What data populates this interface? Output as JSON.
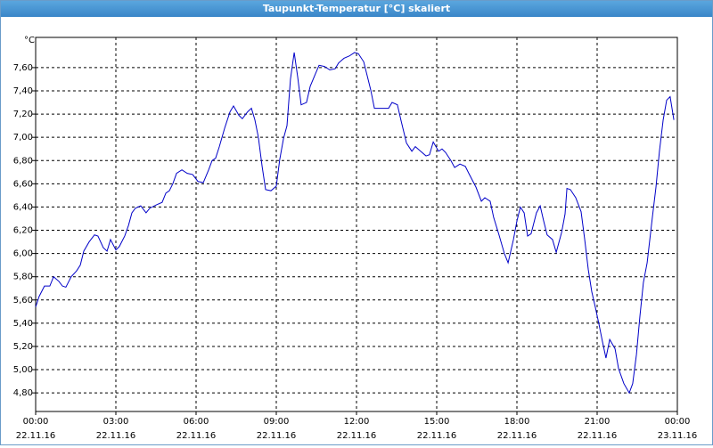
{
  "chart_data": {
    "type": "line",
    "title": "Taupunkt-Temperatur [°C] skaliert",
    "ylabel": "°C",
    "x": [
      0,
      0.13,
      0.33,
      0.53,
      0.67,
      0.87,
      1,
      1.13,
      1.33,
      1.53,
      1.67,
      1.8,
      2,
      2.2,
      2.33,
      2.53,
      2.67,
      2.8,
      3,
      3.13,
      3.33,
      3.47,
      3.6,
      3.73,
      3.93,
      4.13,
      4.27,
      4.53,
      4.73,
      4.87,
      5,
      5.13,
      5.27,
      5.47,
      5.67,
      5.87,
      6.07,
      6.27,
      6.47,
      6.6,
      6.73,
      6.87,
      7.07,
      7.27,
      7.4,
      7.6,
      7.73,
      7.93,
      8.07,
      8.2,
      8.33,
      8.47,
      8.6,
      8.8,
      9,
      9.13,
      9.27,
      9.4,
      9.53,
      9.67,
      9.8,
      9.93,
      10.13,
      10.27,
      10.47,
      10.6,
      10.8,
      11,
      11.2,
      11.33,
      11.53,
      11.73,
      11.93,
      12.07,
      12.27,
      12.4,
      12.53,
      12.67,
      12.87,
      13.07,
      13.2,
      13.33,
      13.53,
      13.67,
      13.87,
      14.07,
      14.2,
      14.4,
      14.6,
      14.73,
      14.87,
      15.07,
      15.2,
      15.33,
      15.53,
      15.67,
      15.87,
      16.07,
      16.2,
      16.47,
      16.67,
      16.8,
      17,
      17.13,
      17.33,
      17.53,
      17.67,
      17.87,
      18,
      18.13,
      18.27,
      18.4,
      18.53,
      18.73,
      18.87,
      19,
      19.13,
      19.33,
      19.47,
      19.67,
      19.8,
      19.87,
      20,
      20.2,
      20.4,
      20.53,
      20.67,
      20.8,
      20.93,
      21.07,
      21.2,
      21.33,
      21.47,
      21.67,
      21.8,
      22,
      22.2,
      22.33,
      22.47,
      22.6,
      22.73,
      22.87,
      23.07,
      23.2,
      23.33,
      23.47,
      23.6,
      23.73,
      23.87
    ],
    "series": [
      {
        "color": "#0000c8",
        "values": [
          5.54,
          5.63,
          5.72,
          5.72,
          5.8,
          5.76,
          5.72,
          5.71,
          5.8,
          5.85,
          5.9,
          6.02,
          6.1,
          6.16,
          6.15,
          6.05,
          6.02,
          6.12,
          6.03,
          6.06,
          6.15,
          6.24,
          6.35,
          6.39,
          6.41,
          6.35,
          6.39,
          6.42,
          6.44,
          6.52,
          6.54,
          6.6,
          6.69,
          6.72,
          6.69,
          6.68,
          6.62,
          6.61,
          6.72,
          6.8,
          6.82,
          6.92,
          7.08,
          7.22,
          7.27,
          7.19,
          7.16,
          7.22,
          7.25,
          7.15,
          7.0,
          6.75,
          6.55,
          6.54,
          6.58,
          6.81,
          6.99,
          7.1,
          7.5,
          7.73,
          7.52,
          7.28,
          7.3,
          7.44,
          7.55,
          7.62,
          7.61,
          7.58,
          7.59,
          7.64,
          7.68,
          7.7,
          7.73,
          7.72,
          7.65,
          7.53,
          7.41,
          7.25,
          7.25,
          7.25,
          7.25,
          7.3,
          7.28,
          7.14,
          6.95,
          6.88,
          6.92,
          6.88,
          6.84,
          6.85,
          6.96,
          6.88,
          6.9,
          6.87,
          6.8,
          6.74,
          6.77,
          6.75,
          6.69,
          6.57,
          6.45,
          6.48,
          6.45,
          6.31,
          6.16,
          6.0,
          5.92,
          6.12,
          6.28,
          6.4,
          6.35,
          6.15,
          6.17,
          6.35,
          6.41,
          6.28,
          6.16,
          6.12,
          6.01,
          6.18,
          6.34,
          6.56,
          6.55,
          6.48,
          6.36,
          6.13,
          5.86,
          5.67,
          5.54,
          5.39,
          5.24,
          5.1,
          5.26,
          5.18,
          5.01,
          4.88,
          4.8,
          4.88,
          5.13,
          5.46,
          5.75,
          5.92,
          6.32,
          6.57,
          6.88,
          7.15,
          7.32,
          7.35,
          7.15
        ]
      }
    ],
    "xlim": [
      0,
      24
    ],
    "xticks": [
      {
        "value": 0,
        "label": "00:00",
        "date": "22.11.16"
      },
      {
        "value": 3,
        "label": "03:00",
        "date": "22.11.16"
      },
      {
        "value": 6,
        "label": "06:00",
        "date": "22.11.16"
      },
      {
        "value": 9,
        "label": "09:00",
        "date": "22.11.16"
      },
      {
        "value": 12,
        "label": "12:00",
        "date": "22.11.16"
      },
      {
        "value": 15,
        "label": "15:00",
        "date": "22.11.16"
      },
      {
        "value": 18,
        "label": "18:00",
        "date": "22.11.16"
      },
      {
        "value": 21,
        "label": "21:00",
        "date": "22.11.16"
      },
      {
        "value": 24,
        "label": "00:00",
        "date": "23.11.16"
      }
    ],
    "ylim": [
      4.64,
      7.86
    ],
    "yticks": [
      {
        "value": 4.8,
        "label": "4,80"
      },
      {
        "value": 5.0,
        "label": "5,00"
      },
      {
        "value": 5.2,
        "label": "5,20"
      },
      {
        "value": 5.4,
        "label": "5,40"
      },
      {
        "value": 5.6,
        "label": "5,60"
      },
      {
        "value": 5.8,
        "label": "5,80"
      },
      {
        "value": 6.0,
        "label": "6,00"
      },
      {
        "value": 6.2,
        "label": "6,20"
      },
      {
        "value": 6.4,
        "label": "6,40"
      },
      {
        "value": 6.6,
        "label": "6,60"
      },
      {
        "value": 6.8,
        "label": "6,80"
      },
      {
        "value": 7.0,
        "label": "7,00"
      },
      {
        "value": 7.2,
        "label": "7,20"
      },
      {
        "value": 7.4,
        "label": "7,40"
      },
      {
        "value": 7.6,
        "label": "7,60"
      }
    ],
    "grid": true
  }
}
